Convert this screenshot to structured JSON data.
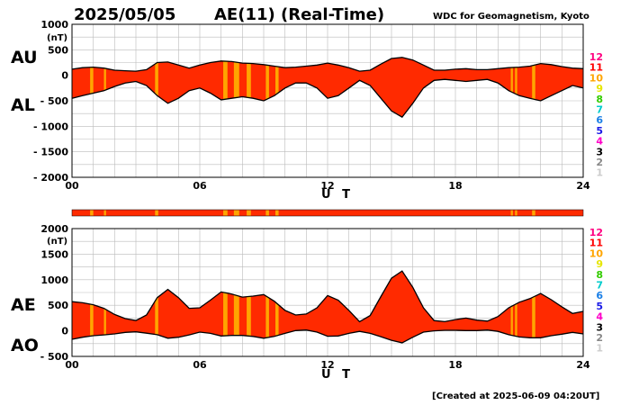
{
  "header": {
    "date": "2025/05/05",
    "title": "AE(11) (Real-Time)",
    "source": "WDC for Geomagnetism, Kyoto"
  },
  "footer": {
    "created": "[Created at 2025-06-09 04:20UT]"
  },
  "colors": {
    "fill": "#ff2a00",
    "highlight": "#ffa500",
    "line": "#000000",
    "grid": "#bbbbbb",
    "kp_scale": [
      "#cccccc",
      "#888888",
      "#000000",
      "#ff00c8",
      "#1a1ae6",
      "#1a7fe6",
      "#00cccc",
      "#33cc00",
      "#e6e600",
      "#ffa500",
      "#ff0000",
      "#ff0080"
    ]
  },
  "station_scale": [
    "1",
    "2",
    "3",
    "4",
    "5",
    "6",
    "7",
    "8",
    "9",
    "10",
    "11",
    "12"
  ],
  "chart_data": [
    {
      "type": "area",
      "panel": "upper",
      "left_labels": {
        "top": "AU",
        "bottom": "AL"
      },
      "unit": "(nT)",
      "xlabel": "U T",
      "xlim": [
        0,
        24
      ],
      "ylim": [
        -2000,
        1000
      ],
      "yticks": [
        1000,
        500,
        0,
        -500,
        -1000,
        -1500,
        -2000
      ],
      "ytick_labels": [
        "1000",
        "500",
        "0",
        "- 500",
        "- 1000",
        "- 1500",
        "- 2000"
      ],
      "xticks": [
        0,
        6,
        12,
        18,
        24
      ],
      "xtick_labels": [
        "00",
        "06",
        "12",
        "18",
        "24"
      ],
      "grid": true,
      "series": [
        {
          "key": "AU",
          "x": [
            0.0,
            0.5,
            1.0,
            1.5,
            2.0,
            2.5,
            3.0,
            3.5,
            4.0,
            4.5,
            5.0,
            5.5,
            6.0,
            6.5,
            7.0,
            7.5,
            8.0,
            8.5,
            9.0,
            9.5,
            10.0,
            10.5,
            11.0,
            11.5,
            12.0,
            12.5,
            13.0,
            13.5,
            14.0,
            14.5,
            15.0,
            15.5,
            16.0,
            16.5,
            17.0,
            17.5,
            18.0,
            18.5,
            19.0,
            19.5,
            20.0,
            20.5,
            21.0,
            21.5,
            22.0,
            22.5,
            23.0,
            23.5,
            24.0
          ],
          "values": [
            120,
            150,
            160,
            140,
            100,
            90,
            80,
            110,
            250,
            260,
            200,
            140,
            200,
            250,
            280,
            270,
            240,
            230,
            210,
            180,
            150,
            160,
            180,
            200,
            240,
            200,
            150,
            80,
            100,
            220,
            330,
            350,
            300,
            200,
            100,
            100,
            120,
            130,
            110,
            110,
            130,
            150,
            160,
            180,
            230,
            210,
            170,
            140,
            130
          ]
        },
        {
          "key": "AL",
          "x": [
            0.0,
            0.5,
            1.0,
            1.5,
            2.0,
            2.5,
            3.0,
            3.5,
            4.0,
            4.5,
            5.0,
            5.5,
            6.0,
            6.5,
            7.0,
            7.5,
            8.0,
            8.5,
            9.0,
            9.5,
            10.0,
            10.5,
            11.0,
            11.5,
            12.0,
            12.5,
            13.0,
            13.5,
            14.0,
            14.5,
            15.0,
            15.5,
            16.0,
            16.5,
            17.0,
            17.5,
            18.0,
            18.5,
            19.0,
            19.5,
            20.0,
            20.5,
            21.0,
            21.5,
            22.0,
            22.5,
            23.0,
            23.5,
            24.0
          ],
          "values": [
            -450,
            -400,
            -350,
            -300,
            -220,
            -150,
            -120,
            -200,
            -400,
            -550,
            -450,
            -300,
            -250,
            -350,
            -480,
            -450,
            -420,
            -450,
            -500,
            -400,
            -250,
            -150,
            -150,
            -250,
            -450,
            -400,
            -250,
            -100,
            -200,
            -450,
            -700,
            -820,
            -550,
            -250,
            -100,
            -80,
            -100,
            -120,
            -100,
            -80,
            -150,
            -300,
            -400,
            -450,
            -500,
            -400,
            -300,
            -200,
            -250
          ]
        }
      ]
    },
    {
      "type": "area",
      "panel": "lower",
      "left_labels": {
        "top": "AE",
        "bottom": "AO"
      },
      "unit": "(nT)",
      "xlabel": "U T",
      "xlim": [
        0,
        24
      ],
      "ylim": [
        -500,
        2000
      ],
      "yticks": [
        2000,
        1500,
        1000,
        500,
        0,
        -500
      ],
      "ytick_labels": [
        "2000",
        "1500",
        "1000",
        "500",
        "0",
        "- 500"
      ],
      "xticks": [
        0,
        6,
        12,
        18,
        24
      ],
      "xtick_labels": [
        "00",
        "06",
        "12",
        "18",
        "24"
      ],
      "grid": true,
      "series": [
        {
          "key": "AE",
          "x": [
            0.0,
            0.5,
            1.0,
            1.5,
            2.0,
            2.5,
            3.0,
            3.5,
            4.0,
            4.5,
            5.0,
            5.5,
            6.0,
            6.5,
            7.0,
            7.5,
            8.0,
            8.5,
            9.0,
            9.5,
            10.0,
            10.5,
            11.0,
            11.5,
            12.0,
            12.5,
            13.0,
            13.5,
            14.0,
            14.5,
            15.0,
            15.5,
            16.0,
            16.5,
            17.0,
            17.5,
            18.0,
            18.5,
            19.0,
            19.5,
            20.0,
            20.5,
            21.0,
            21.5,
            22.0,
            22.5,
            23.0,
            23.5,
            24.0
          ],
          "values": [
            570,
            550,
            510,
            440,
            320,
            240,
            200,
            310,
            650,
            810,
            650,
            440,
            450,
            600,
            760,
            720,
            660,
            680,
            710,
            580,
            400,
            310,
            330,
            450,
            690,
            600,
            400,
            180,
            300,
            670,
            1030,
            1170,
            850,
            450,
            200,
            180,
            220,
            250,
            210,
            190,
            280,
            450,
            560,
            630,
            730,
            610,
            470,
            340,
            380
          ]
        },
        {
          "key": "AO",
          "x": [
            0.0,
            0.5,
            1.0,
            1.5,
            2.0,
            2.5,
            3.0,
            3.5,
            4.0,
            4.5,
            5.0,
            5.5,
            6.0,
            6.5,
            7.0,
            7.5,
            8.0,
            8.5,
            9.0,
            9.5,
            10.0,
            10.5,
            11.0,
            11.5,
            12.0,
            12.5,
            13.0,
            13.5,
            14.0,
            14.5,
            15.0,
            15.5,
            16.0,
            16.5,
            17.0,
            17.5,
            18.0,
            18.5,
            19.0,
            19.5,
            20.0,
            20.5,
            21.0,
            21.5,
            22.0,
            22.5,
            23.0,
            23.5,
            24.0
          ],
          "values": [
            -165,
            -125,
            -95,
            -80,
            -60,
            -30,
            -20,
            -45,
            -75,
            -145,
            -125,
            -80,
            -25,
            -50,
            -100,
            -90,
            -90,
            -110,
            -145,
            -110,
            -50,
            5,
            15,
            -25,
            -105,
            -100,
            -50,
            -10,
            -50,
            -115,
            -185,
            -235,
            -125,
            -25,
            0,
            10,
            10,
            5,
            5,
            15,
            -10,
            -75,
            -120,
            -135,
            -135,
            -95,
            -65,
            -30,
            -60
          ]
        }
      ]
    },
    {
      "type": "bar",
      "panel": "coverage-strip",
      "xlim": [
        0,
        24
      ],
      "highlight_spans": [
        [
          0.85,
          1.0
        ],
        [
          1.5,
          1.6
        ],
        [
          3.9,
          4.05
        ],
        [
          7.1,
          7.3
        ],
        [
          7.6,
          7.85
        ],
        [
          8.2,
          8.4
        ],
        [
          9.1,
          9.25
        ],
        [
          9.55,
          9.7
        ],
        [
          20.6,
          20.7
        ],
        [
          20.8,
          20.9
        ],
        [
          21.6,
          21.75
        ]
      ]
    }
  ]
}
